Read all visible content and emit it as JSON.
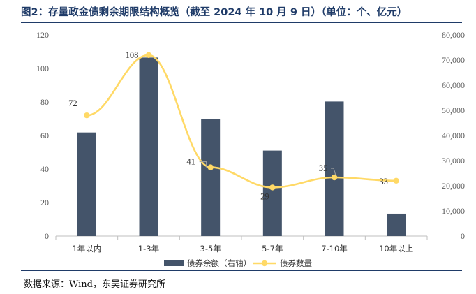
{
  "header": {
    "title": "图2：存量政金债剩余期限结构概览（截至 2024 年 10 月 9 日）（单位：个、亿元）"
  },
  "footer": {
    "source": "数据来源：Wind，东吴证券研究所"
  },
  "chart_data": {
    "type": "bar",
    "categories": [
      "1年以内",
      "1-3年",
      "3-5年",
      "5-7年",
      "7-10年",
      "10年以上"
    ],
    "series": [
      {
        "name": "债券余额（右轴）",
        "type": "bar",
        "axis": "right",
        "values": [
          41200,
          71000,
          46500,
          34000,
          53500,
          8900
        ],
        "color": "#44546a"
      },
      {
        "name": "债券数量",
        "type": "line",
        "axis": "left",
        "values": [
          72,
          108,
          41,
          29,
          35,
          33
        ],
        "color": "#ffd966"
      }
    ],
    "data_labels": [
      "72",
      "108",
      "41",
      "29",
      "35",
      "33"
    ],
    "y_left": {
      "min": 0,
      "max": 120,
      "ticks": [
        "0",
        "20",
        "40",
        "60",
        "80",
        "100",
        "120"
      ]
    },
    "y_right": {
      "min": 0,
      "max": 80000,
      "ticks": [
        "0",
        "10,000",
        "20,000",
        "30,000",
        "40,000",
        "50,000",
        "60,000",
        "70,000",
        "80,000"
      ]
    },
    "grid": false,
    "legend_position": "bottom"
  }
}
